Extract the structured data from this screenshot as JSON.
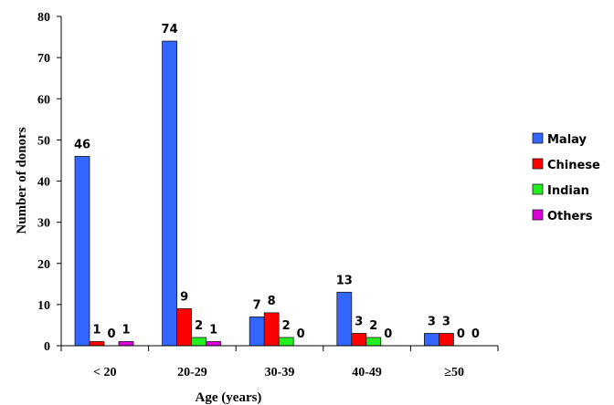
{
  "chart_data": {
    "type": "bar",
    "categories": [
      "< 20",
      "20-29",
      "30-39",
      "40-49",
      "≥50"
    ],
    "series": [
      {
        "name": "Malay",
        "values": [
          46,
          74,
          7,
          13,
          3
        ],
        "color": "#3366ff"
      },
      {
        "name": "Chinese",
        "values": [
          1,
          9,
          8,
          3,
          3
        ],
        "color": "#ff0000"
      },
      {
        "name": "Indian",
        "values": [
          0,
          2,
          2,
          2,
          0
        ],
        "color": "#22ee22"
      },
      {
        "name": "Others",
        "values": [
          1,
          1,
          0,
          0,
          0
        ],
        "color": "#dd00dd"
      }
    ],
    "xlabel": "Age (years)",
    "ylabel": "Number of donors",
    "ylim": [
      0,
      80
    ],
    "yticks": [
      0,
      10,
      20,
      30,
      40,
      50,
      60,
      70,
      80
    ],
    "grid": false,
    "legend_position": "right"
  }
}
